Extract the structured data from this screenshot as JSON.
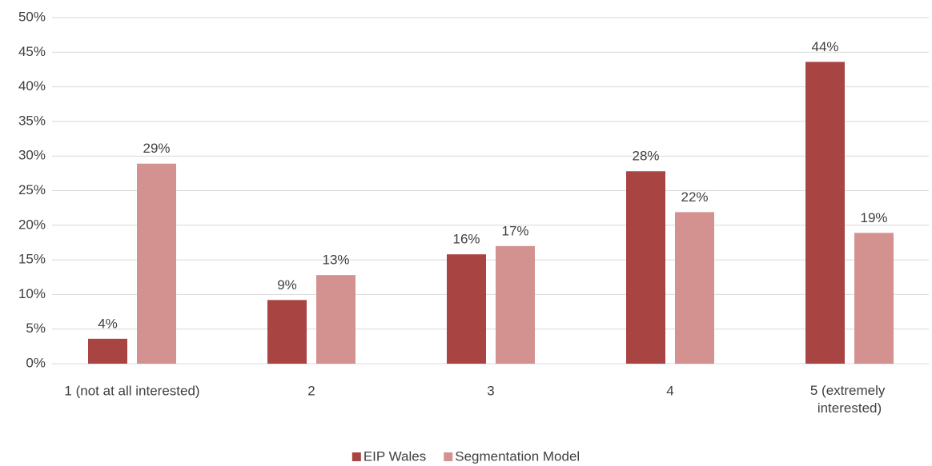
{
  "chart_data": {
    "type": "bar",
    "categories": [
      "1 (not at all interested)",
      "2",
      "3",
      "4",
      "5 (extremely interested)"
    ],
    "series": [
      {
        "name": "EIP Wales",
        "color": "#a84442",
        "values": [
          3.6,
          9.2,
          15.8,
          27.8,
          43.6
        ],
        "value_labels": [
          "4%",
          "9%",
          "16%",
          "28%",
          "44%"
        ]
      },
      {
        "name": "Segmentation Model",
        "color": "#d39290",
        "values": [
          28.9,
          12.8,
          17.0,
          21.9,
          18.9
        ],
        "value_labels": [
          "29%",
          "13%",
          "17%",
          "22%",
          "19%"
        ]
      }
    ],
    "ylim": [
      0,
      50
    ],
    "yticks": [
      {
        "value": 0,
        "label": "0%"
      },
      {
        "value": 5,
        "label": "5%"
      },
      {
        "value": 10,
        "label": "10%"
      },
      {
        "value": 15,
        "label": "15%"
      },
      {
        "value": 20,
        "label": "20%"
      },
      {
        "value": 25,
        "label": "25%"
      },
      {
        "value": 30,
        "label": "30%"
      },
      {
        "value": 35,
        "label": "35%"
      },
      {
        "value": 40,
        "label": "40%"
      },
      {
        "value": 45,
        "label": "45%"
      },
      {
        "value": 50,
        "label": "50%"
      }
    ],
    "grid": true,
    "legend": "bottom"
  }
}
